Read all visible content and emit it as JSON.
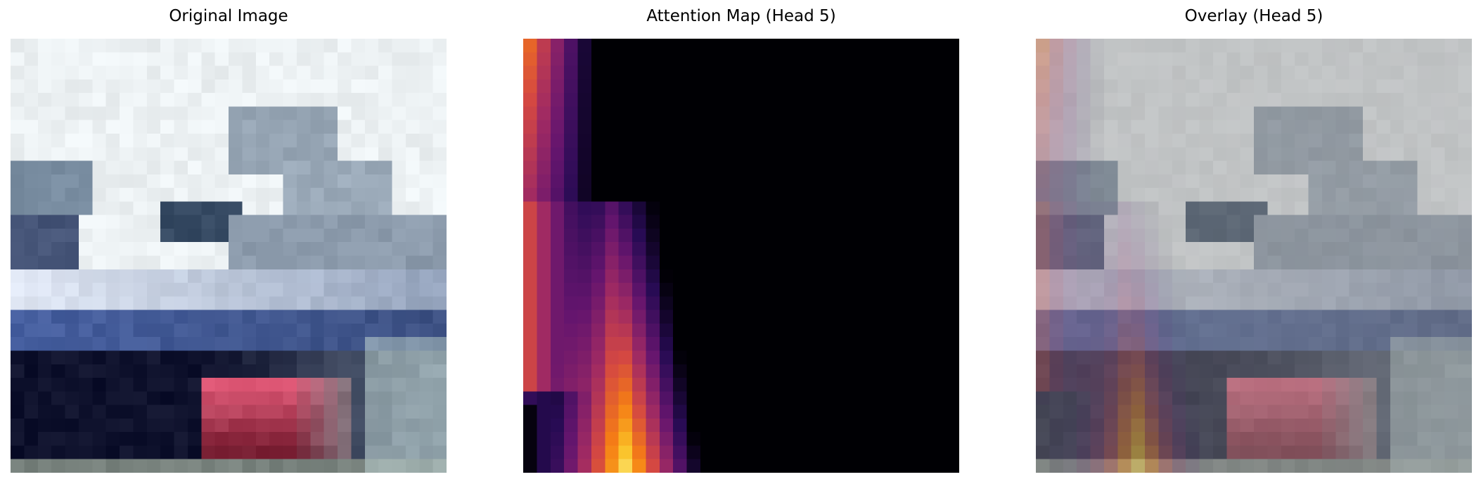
{
  "panels": [
    {
      "title": "Original Image"
    },
    {
      "title": "Attention Map (Head 5)"
    },
    {
      "title": "Overlay (Head 5)"
    }
  ],
  "image": {
    "grid": [
      32,
      32
    ],
    "colormap": "inferno",
    "overlay_gray": "#8c8c8c"
  }
}
